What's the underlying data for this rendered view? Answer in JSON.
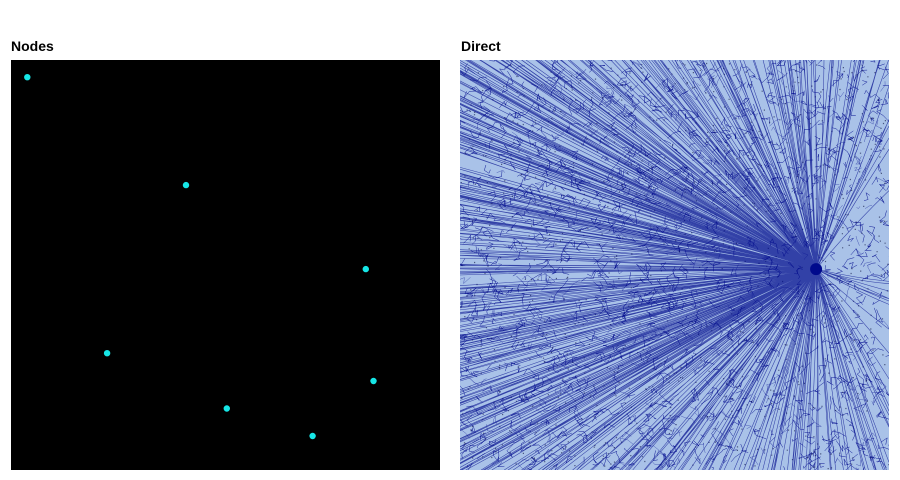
{
  "chart_data": [
    {
      "type": "scatter",
      "title": "Nodes",
      "xlabel": "",
      "ylabel": "",
      "background_color": "#000000",
      "point_color": "#16e6e6",
      "xlim": [
        0,
        1
      ],
      "ylim": [
        0,
        1
      ],
      "points": [
        {
          "x": 0.038,
          "y": 0.958
        },
        {
          "x": 0.408,
          "y": 0.695
        },
        {
          "x": 0.827,
          "y": 0.49
        },
        {
          "x": 0.224,
          "y": 0.285
        },
        {
          "x": 0.845,
          "y": 0.217
        },
        {
          "x": 0.503,
          "y": 0.15
        },
        {
          "x": 0.703,
          "y": 0.083
        }
      ]
    },
    {
      "type": "heatmap",
      "title": "Direct",
      "xlabel": "",
      "ylabel": "",
      "description_colors": {
        "background": "#a9c2e8",
        "line": "#000a8c",
        "dark_speckle": "#0a0f3c"
      },
      "xlim": [
        0,
        1
      ],
      "ylim": [
        0,
        1
      ],
      "hub": {
        "x": 0.83,
        "y": 0.49
      }
    }
  ]
}
